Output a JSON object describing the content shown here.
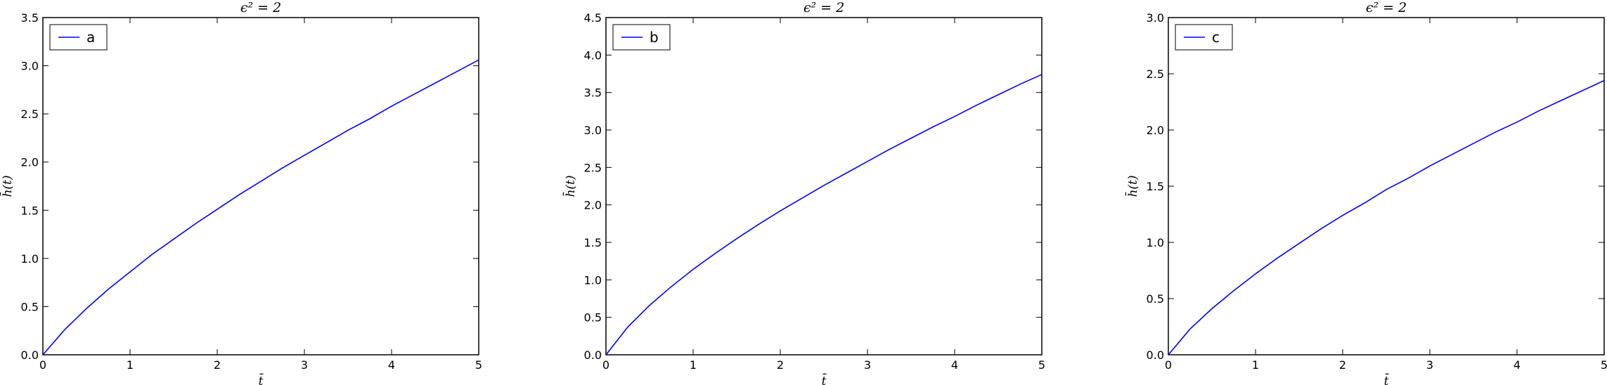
{
  "chart_data": [
    {
      "type": "line",
      "title": "ϵ² = 2",
      "xlabel": "t̄",
      "ylabel": "h̄(t)",
      "xlim": [
        0,
        5
      ],
      "ylim": [
        0,
        3.5
      ],
      "xticks": [
        "0",
        "1",
        "2",
        "3",
        "4",
        "5"
      ],
      "yticks": [
        "0.0",
        "0.5",
        "1.0",
        "1.5",
        "2.0",
        "2.5",
        "3.0",
        "3.5"
      ],
      "grid": false,
      "legend_position": "upper left",
      "series": [
        {
          "name": "a",
          "color": "#0000ff",
          "x": [
            0,
            0.25,
            0.5,
            0.75,
            1,
            1.25,
            1.5,
            1.75,
            2,
            2.25,
            2.5,
            2.75,
            3,
            3.25,
            3.5,
            3.75,
            4,
            4.25,
            4.5,
            4.75,
            5
          ],
          "y": [
            0,
            0.26,
            0.48,
            0.68,
            0.86,
            1.04,
            1.2,
            1.36,
            1.51,
            1.66,
            1.8,
            1.94,
            2.07,
            2.2,
            2.33,
            2.45,
            2.58,
            2.7,
            2.82,
            2.94,
            3.06
          ]
        }
      ]
    },
    {
      "type": "line",
      "title": "ϵ² = 2",
      "xlabel": "t̄",
      "ylabel": "h̄(t)",
      "xlim": [
        0,
        5
      ],
      "ylim": [
        0,
        4.5
      ],
      "xticks": [
        "0",
        "1",
        "2",
        "3",
        "4",
        "5"
      ],
      "yticks": [
        "0.0",
        "0.5",
        "1.0",
        "1.5",
        "2.0",
        "2.5",
        "3.0",
        "3.5",
        "4.0",
        "4.5"
      ],
      "grid": false,
      "legend_position": "upper left",
      "series": [
        {
          "name": "b",
          "color": "#0000ff",
          "x": [
            0,
            0.25,
            0.5,
            0.75,
            1,
            1.25,
            1.5,
            1.75,
            2,
            2.25,
            2.5,
            2.75,
            3,
            3.25,
            3.5,
            3.75,
            4,
            4.25,
            4.5,
            4.75,
            5
          ],
          "y": [
            0,
            0.37,
            0.66,
            0.91,
            1.14,
            1.35,
            1.55,
            1.74,
            1.92,
            2.09,
            2.26,
            2.42,
            2.58,
            2.74,
            2.89,
            3.04,
            3.18,
            3.33,
            3.47,
            3.61,
            3.74
          ]
        }
      ]
    },
    {
      "type": "line",
      "title": "ϵ² = 2",
      "xlabel": "t̄",
      "ylabel": "h̄(t)",
      "xlim": [
        0,
        5
      ],
      "ylim": [
        0,
        3.0
      ],
      "xticks": [
        "0",
        "1",
        "2",
        "3",
        "4",
        "5"
      ],
      "yticks": [
        "0.0",
        "0.5",
        "1.0",
        "1.5",
        "2.0",
        "2.5",
        "3.0"
      ],
      "grid": false,
      "legend_position": "upper left",
      "series": [
        {
          "name": "c",
          "color": "#0000ff",
          "x": [
            0,
            0.25,
            0.5,
            0.75,
            1,
            1.25,
            1.5,
            1.75,
            2,
            2.25,
            2.5,
            2.75,
            3,
            3.25,
            3.5,
            3.75,
            4,
            4.25,
            4.5,
            4.75,
            5
          ],
          "y": [
            0,
            0.23,
            0.41,
            0.57,
            0.72,
            0.86,
            0.99,
            1.12,
            1.24,
            1.35,
            1.47,
            1.57,
            1.68,
            1.78,
            1.88,
            1.98,
            2.07,
            2.17,
            2.26,
            2.35,
            2.44
          ]
        }
      ]
    }
  ]
}
